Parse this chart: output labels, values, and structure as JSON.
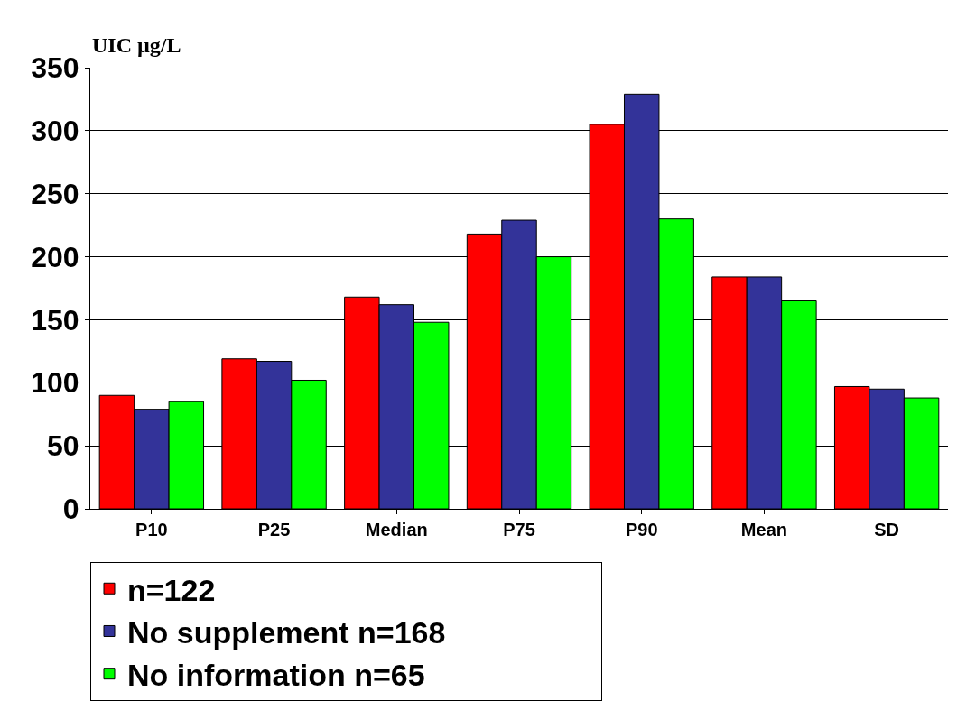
{
  "chart_data": {
    "type": "bar",
    "ylabel": "UIC µg/L",
    "categories": [
      "P10",
      "P25",
      "Median",
      "P75",
      "P90",
      "Mean",
      "SD"
    ],
    "series": [
      {
        "name": "n=122",
        "color": "#ff0000",
        "values": [
          90,
          119,
          168,
          218,
          305,
          184,
          97
        ]
      },
      {
        "name": "No supplement n=168",
        "color": "#333399",
        "values": [
          79,
          117,
          162,
          229,
          329,
          184,
          95
        ]
      },
      {
        "name": "No information n=65",
        "color": "#00ff00",
        "values": [
          85,
          102,
          148,
          200,
          230,
          165,
          88
        ]
      }
    ],
    "ylim": [
      0,
      350
    ],
    "yticks": [
      0,
      50,
      100,
      150,
      200,
      250,
      300,
      350
    ],
    "grid": "y",
    "legend": "bottom"
  }
}
